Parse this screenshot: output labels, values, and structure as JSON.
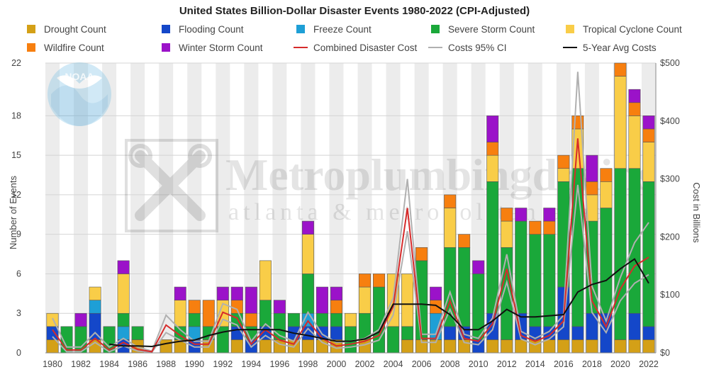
{
  "chart_data": {
    "type": "bar",
    "stacked": true,
    "title": "United States Billion-Dollar Disaster Events 1980-2022 (CPI-Adjusted)",
    "ylabel": "Number of Events",
    "y2label": "Cost in Billions",
    "ylim": [
      0,
      22
    ],
    "y2lim": [
      0,
      500
    ],
    "yticks": [
      0,
      3,
      6,
      9,
      12,
      15,
      18,
      22
    ],
    "y2ticks": [
      "$0",
      "$100",
      "$200",
      "$300",
      "$400",
      "$500"
    ],
    "y2tick_values": [
      0,
      100,
      200,
      300,
      400,
      500
    ],
    "xticks": [
      "1980",
      "1982",
      "1984",
      "1986",
      "1988",
      "1990",
      "1992",
      "1994",
      "1996",
      "1998",
      "2000",
      "2002",
      "2004",
      "2006",
      "2008",
      "2010",
      "2012",
      "2014",
      "2016",
      "2018",
      "2020",
      "2022"
    ],
    "years": [
      1980,
      1981,
      1982,
      1983,
      1984,
      1985,
      1986,
      1987,
      1988,
      1989,
      1990,
      1991,
      1992,
      1993,
      1994,
      1995,
      1996,
      1997,
      1998,
      1999,
      2000,
      2001,
      2002,
      2003,
      2004,
      2005,
      2006,
      2007,
      2008,
      2009,
      2010,
      2011,
      2012,
      2013,
      2014,
      2015,
      2016,
      2017,
      2018,
      2019,
      2020,
      2021,
      2022
    ],
    "series": [
      {
        "name": "Drought Count",
        "color": "#d4a017",
        "values": [
          1,
          0,
          0,
          1,
          0,
          0,
          1,
          0,
          1,
          1,
          0,
          1,
          0,
          1,
          0,
          1,
          1,
          1,
          1,
          1,
          1,
          0,
          1,
          0,
          0,
          1,
          1,
          1,
          1,
          1,
          0,
          1,
          1,
          1,
          1,
          1,
          1,
          1,
          1,
          0,
          1,
          1,
          1
        ]
      },
      {
        "name": "Flooding Count",
        "color": "#1447c9",
        "values": [
          1,
          0,
          0,
          2,
          0,
          1,
          0,
          0,
          0,
          0,
          1,
          0,
          0,
          1,
          1,
          1,
          0,
          1,
          1,
          1,
          1,
          0,
          0,
          0,
          0,
          0,
          0,
          0,
          1,
          1,
          1,
          2,
          0,
          2,
          1,
          1,
          4,
          1,
          2,
          3,
          0,
          2,
          1
        ]
      },
      {
        "name": "Freeze Count",
        "color": "#1e9fd6",
        "values": [
          0,
          0,
          0,
          1,
          0,
          1,
          0,
          0,
          0,
          0,
          1,
          0,
          0,
          0,
          0,
          0,
          0,
          0,
          1,
          0,
          0,
          0,
          0,
          0,
          0,
          0,
          0,
          2,
          0,
          0,
          0,
          0,
          0,
          0,
          0,
          0,
          0,
          0,
          0,
          0,
          0,
          0,
          0
        ]
      },
      {
        "name": "Severe Storm Count",
        "color": "#1aa83a",
        "values": [
          0,
          2,
          2,
          0,
          2,
          1,
          1,
          0,
          0,
          1,
          1,
          1,
          2,
          1,
          1,
          2,
          2,
          1,
          3,
          1,
          1,
          2,
          2,
          5,
          2,
          1,
          6,
          0,
          6,
          6,
          5,
          10,
          7,
          7,
          7,
          7,
          8,
          12,
          7,
          8,
          13,
          11,
          11
        ]
      },
      {
        "name": "Tropical Cyclone Count",
        "color": "#f9cd48",
        "values": [
          1,
          0,
          0,
          1,
          0,
          3,
          0,
          0,
          0,
          2,
          0,
          0,
          2,
          0,
          0,
          3,
          0,
          0,
          3,
          0,
          0,
          1,
          2,
          0,
          4,
          4,
          0,
          0,
          3,
          0,
          0,
          2,
          2,
          0,
          0,
          0,
          1,
          3,
          2,
          2,
          7,
          4,
          3
        ]
      },
      {
        "name": "Wildfire Count",
        "color": "#f77f0f",
        "values": [
          0,
          0,
          0,
          0,
          0,
          0,
          0,
          0,
          0,
          0,
          1,
          2,
          0,
          1,
          1,
          0,
          0,
          0,
          0,
          0,
          1,
          0,
          1,
          1,
          0,
          0,
          1,
          1,
          1,
          1,
          0,
          1,
          1,
          0,
          1,
          1,
          1,
          1,
          1,
          1,
          1,
          1,
          1
        ]
      },
      {
        "name": "Winter Storm Count",
        "color": "#9b12c9",
        "values": [
          0,
          0,
          1,
          0,
          0,
          1,
          0,
          0,
          0,
          1,
          0,
          0,
          1,
          1,
          2,
          0,
          1,
          0,
          1,
          2,
          1,
          0,
          0,
          0,
          0,
          0,
          0,
          1,
          0,
          0,
          1,
          2,
          0,
          1,
          0,
          1,
          0,
          0,
          2,
          0,
          0,
          1,
          1
        ]
      },
      {
        "name": "Combined Disaster Cost",
        "color": "#d62b2b",
        "values": [
          40,
          5,
          5,
          25,
          5,
          18,
          6,
          2,
          48,
          30,
          15,
          15,
          70,
          60,
          15,
          40,
          22,
          15,
          55,
          25,
          12,
          15,
          20,
          30,
          80,
          250,
          25,
          25,
          90,
          25,
          20,
          50,
          145,
          30,
          20,
          30,
          55,
          370,
          90,
          45,
          110,
          150,
          165
        ]
      },
      {
        "name": "Costs 95% CI",
        "color": "#b0b0b0",
        "upper": [
          60,
          10,
          10,
          35,
          10,
          25,
          10,
          3,
          65,
          40,
          20,
          20,
          85,
          75,
          20,
          50,
          30,
          20,
          70,
          32,
          18,
          20,
          25,
          40,
          95,
          300,
          32,
          32,
          105,
          32,
          25,
          60,
          170,
          37,
          25,
          37,
          65,
          485,
          115,
          55,
          130,
          190,
          225
        ],
        "lower": [
          28,
          2,
          2,
          18,
          2,
          12,
          3,
          1,
          35,
          22,
          10,
          10,
          58,
          48,
          10,
          30,
          15,
          10,
          42,
          18,
          8,
          10,
          14,
          22,
          65,
          210,
          18,
          18,
          75,
          18,
          14,
          40,
          122,
          24,
          14,
          24,
          45,
          290,
          70,
          35,
          90,
          120,
          135
        ]
      },
      {
        "name": "5-Year Avg Costs",
        "color": "#111111",
        "values": [
          null,
          null,
          null,
          null,
          15,
          12,
          12,
          11,
          16,
          20,
          22,
          30,
          36,
          40,
          40,
          40,
          40,
          34,
          30,
          25,
          20,
          20,
          24,
          36,
          84,
          84,
          84,
          82,
          66,
          40,
          40,
          55,
          75,
          62,
          62,
          64,
          66,
          105,
          118,
          125,
          145,
          162,
          120
        ]
      }
    ]
  },
  "logos": {
    "noaa_text": "NOAA",
    "noaa_icon": "noaa-logo-icon",
    "watermark_icon": "wrench-icon"
  },
  "watermark": {
    "line1": "Metroplumbingdrains",
    "line2": "atlanta & metropolitan area"
  }
}
